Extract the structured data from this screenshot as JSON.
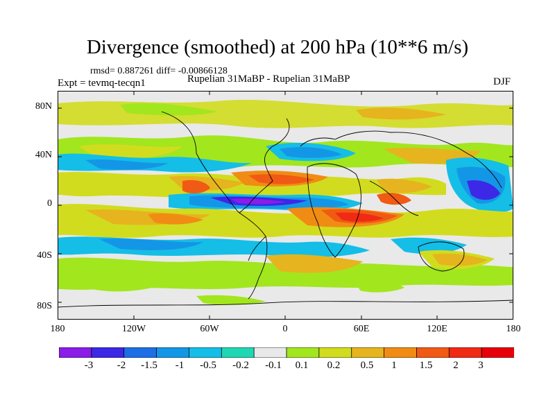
{
  "title": "Divergence (smoothed) at 200 hPa (10**6 m/s)",
  "stats": "rmsd= 0.887261 diff= -0.00866128",
  "experiment": "Expt = tevmq-tecqn1",
  "period": "Rupelian  31MaBP - Rupelian  31MaBP",
  "season": "DJF",
  "y_ticks": [
    "80N",
    "40N",
    "0",
    "40S",
    "80S"
  ],
  "x_ticks": [
    "180",
    "120W",
    "60W",
    "0",
    "60E",
    "120E",
    "180"
  ],
  "colorbar": {
    "labels": [
      "-3",
      "-2",
      "-1.5",
      "-1",
      "-0.5",
      "-0.2",
      "-0.1",
      "0.1",
      "0.2",
      "0.5",
      "1",
      "1.5",
      "2",
      "3"
    ],
    "colors": [
      "#8a1de8",
      "#3c28e6",
      "#1e6ee6",
      "#1496e6",
      "#14bee6",
      "#20d7b3",
      "#e9e9e9",
      "#a2e61e",
      "#d2dc1e",
      "#e6b41e",
      "#f08c14",
      "#f05a14",
      "#f02a14",
      "#e6000a"
    ]
  },
  "map": {
    "background": "#e9e9e9",
    "frame": "#000000"
  }
}
